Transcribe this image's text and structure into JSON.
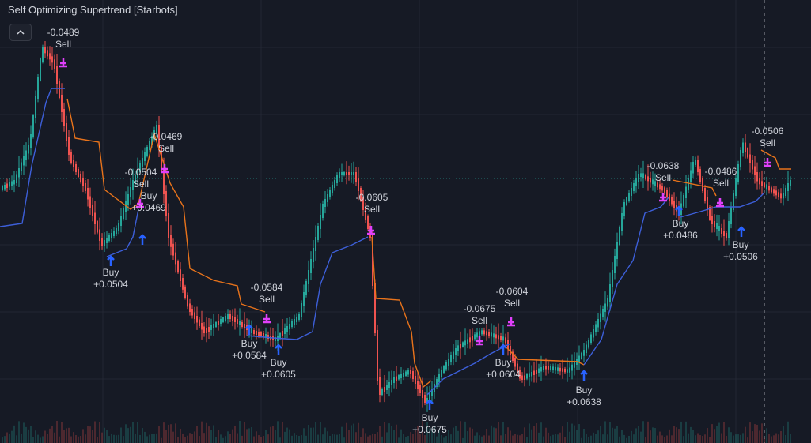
{
  "title": "Self Optimizing Supertrend [Starbots]",
  "signals": [
    {
      "lines": [
        "-0.0489",
        "Sell"
      ]
    },
    {
      "lines": [
        "-0.0469",
        "Sell"
      ]
    },
    {
      "lines": [
        "-0.0504",
        "Sell"
      ]
    },
    {
      "lines": [
        "Buy",
        "+0.0469"
      ]
    },
    {
      "lines": [
        "Buy",
        "+0.0504"
      ]
    },
    {
      "lines": [
        "-0.0605",
        "Sell"
      ]
    },
    {
      "lines": [
        "-0.0584",
        "Sell"
      ]
    },
    {
      "lines": [
        "Buy",
        "+0.0584"
      ]
    },
    {
      "lines": [
        "Buy",
        "+0.0605"
      ]
    },
    {
      "lines": [
        "-0.0675",
        "Sell"
      ]
    },
    {
      "lines": [
        "-0.0604",
        "Sell"
      ]
    },
    {
      "lines": [
        "Buy",
        "+0.0604"
      ]
    },
    {
      "lines": [
        "Buy",
        "+0.0675"
      ]
    },
    {
      "lines": [
        "Buy",
        "+0.0638"
      ]
    },
    {
      "lines": [
        "-0.0638",
        "Sell"
      ]
    },
    {
      "lines": [
        "-0.0486",
        "Sell"
      ]
    },
    {
      "lines": [
        "Buy",
        "+0.0486"
      ]
    },
    {
      "lines": [
        "Buy",
        "+0.0506"
      ]
    },
    {
      "lines": [
        "-0.0506",
        "Sell"
      ]
    }
  ]
}
